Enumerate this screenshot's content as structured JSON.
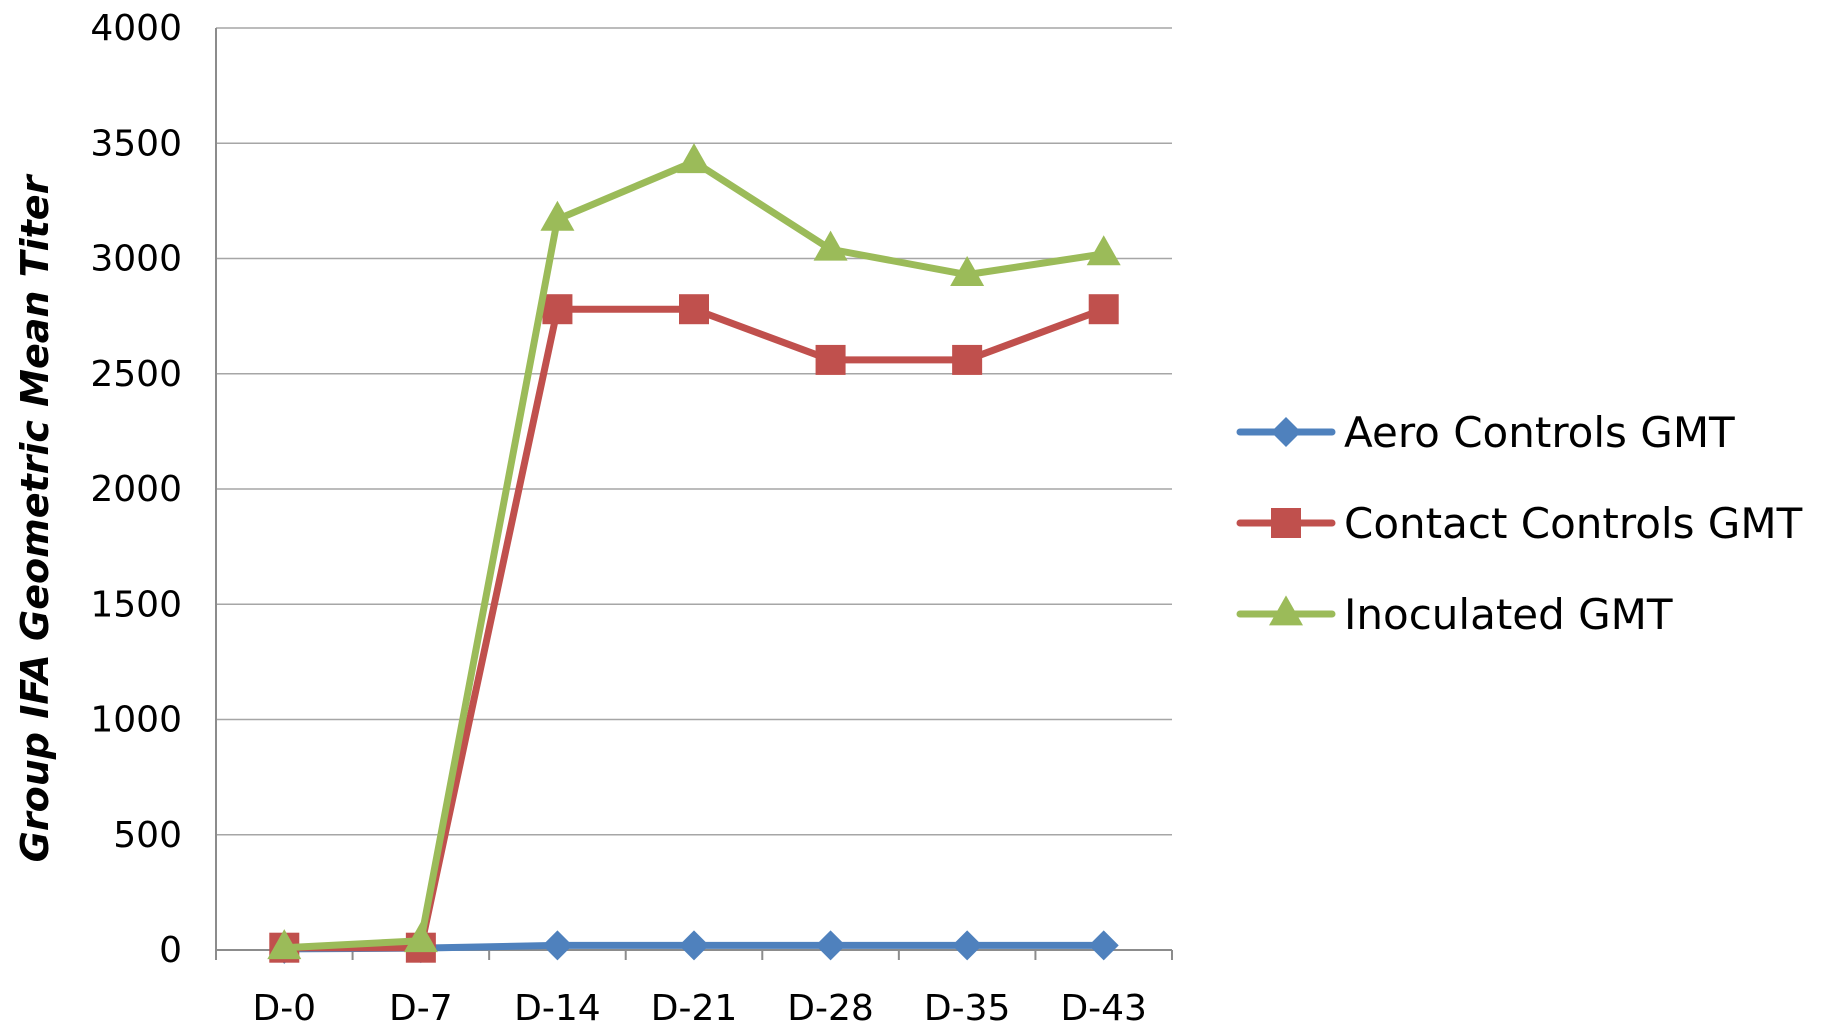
{
  "chart_data": {
    "type": "line",
    "title": "",
    "xlabel": "",
    "ylabel": "Group IFA Geometric Mean Titer",
    "categories": [
      "D-0",
      "D-7",
      "D-14",
      "D-21",
      "D-28",
      "D-35",
      "D-43"
    ],
    "ylim": [
      0,
      4000
    ],
    "yticks": [
      0,
      500,
      1000,
      1500,
      2000,
      2500,
      3000,
      3500,
      4000
    ],
    "grid": true,
    "legend_position": "right",
    "series": [
      {
        "name": "Aero Controls GMT",
        "color": "#4f81bd",
        "marker": "diamond",
        "values": [
          5,
          8,
          20,
          20,
          20,
          20,
          20
        ]
      },
      {
        "name": "Contact Controls GMT",
        "color": "#c0504d",
        "marker": "square",
        "values": [
          10,
          10,
          2780,
          2780,
          2560,
          2560,
          2780
        ]
      },
      {
        "name": "Inoculated GMT",
        "color": "#9bbb59",
        "marker": "triangle",
        "values": [
          10,
          40,
          3170,
          3420,
          3040,
          2930,
          3020
        ]
      }
    ]
  }
}
